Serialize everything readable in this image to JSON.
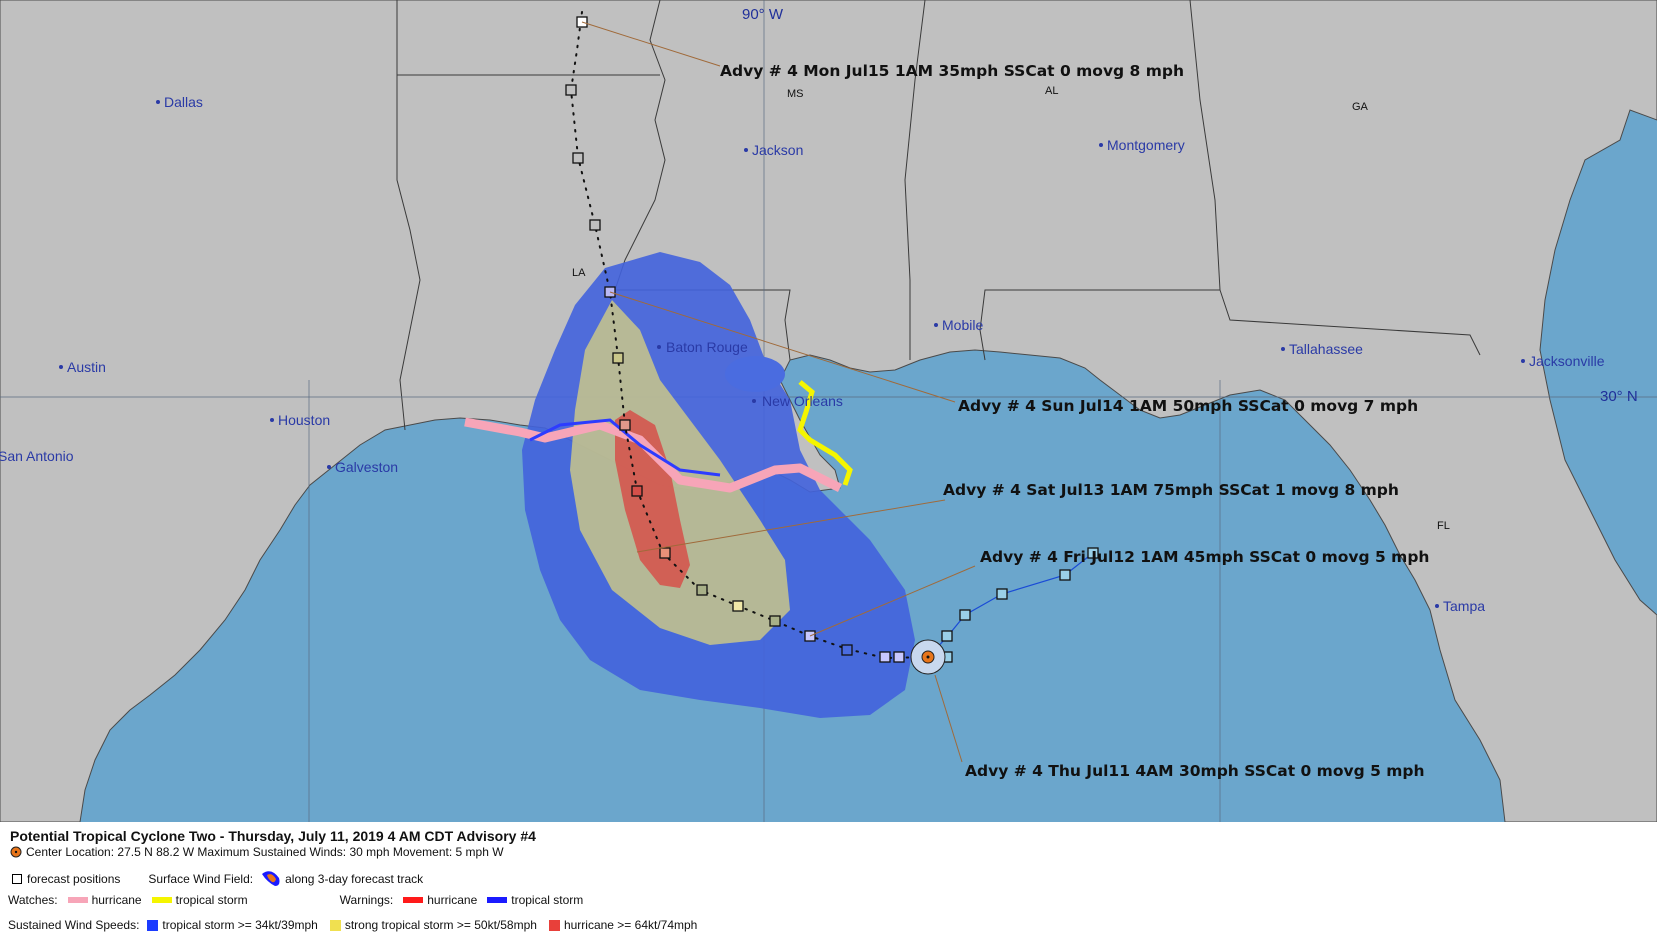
{
  "map": {
    "cities": [
      {
        "name": "Dallas"
      },
      {
        "name": "Jackson"
      },
      {
        "name": "Montgomery"
      },
      {
        "name": "Austin"
      },
      {
        "name": "Baton Rouge"
      },
      {
        "name": "Mobile"
      },
      {
        "name": "Tallahassee"
      },
      {
        "name": "Jacksonville"
      },
      {
        "name": "New Orleans"
      },
      {
        "name": "Houston"
      },
      {
        "name": "San Antonio"
      },
      {
        "name": "Galveston"
      },
      {
        "name": "Tampa"
      }
    ],
    "states": [
      "MS",
      "AL",
      "GA",
      "LA",
      "FL"
    ],
    "grid_labels": {
      "lon": "90° W",
      "lat": "30° N"
    },
    "advisories": [
      {
        "text": "Advy # 4 Mon Jul15 1AM  35mph SSCat 0 movg 8 mph"
      },
      {
        "text": "Advy # 4 Sun Jul14 1AM  50mph SSCat 0 movg 7 mph"
      },
      {
        "text": "Advy # 4 Sat Jul13 1AM  75mph SSCat 1 movg 8 mph"
      },
      {
        "text": "Advy # 4 Fri Jul12 1AM  45mph SSCat 0 movg 5 mph"
      },
      {
        "text": "Advy # 4 Thu Jul11 4AM  30mph SSCat 0 movg 5 mph"
      }
    ],
    "colors": {
      "land": "#c0c0c0",
      "water": "#6ba6cc",
      "ts_wind": "#4263dd",
      "sts_wind": "#e8e070",
      "hurricane_wind": "#e8403a",
      "hurricane_watch": "#f7a5b8",
      "ts_warning": "#1b1bff",
      "ts_watch": "#f5f500"
    }
  },
  "legend": {
    "title": "Potential Tropical Cyclone Two  -  Thursday, July 11, 2019  4 AM CDT   Advisory #4",
    "center": "Center Location: 27.5 N  88.2 W   Maximum Sustained Winds: 30 mph  Movement: 5 mph W",
    "forecast_positions": "forecast positions",
    "surface_wind_field": "Surface Wind Field:",
    "along_track": "along 3-day forecast track",
    "watches": "Watches:",
    "watch_hurricane": "hurricane",
    "watch_ts": "tropical storm",
    "warnings": "Warnings:",
    "warning_hurricane": "hurricane",
    "warning_ts": "tropical storm",
    "sustained": "Sustained Wind Speeds:",
    "ws_ts": "tropical storm >= 34kt/39mph",
    "ws_sts": "strong tropical storm >= 50kt/58mph",
    "ws_hurricane": "hurricane >= 64kt/74mph"
  }
}
